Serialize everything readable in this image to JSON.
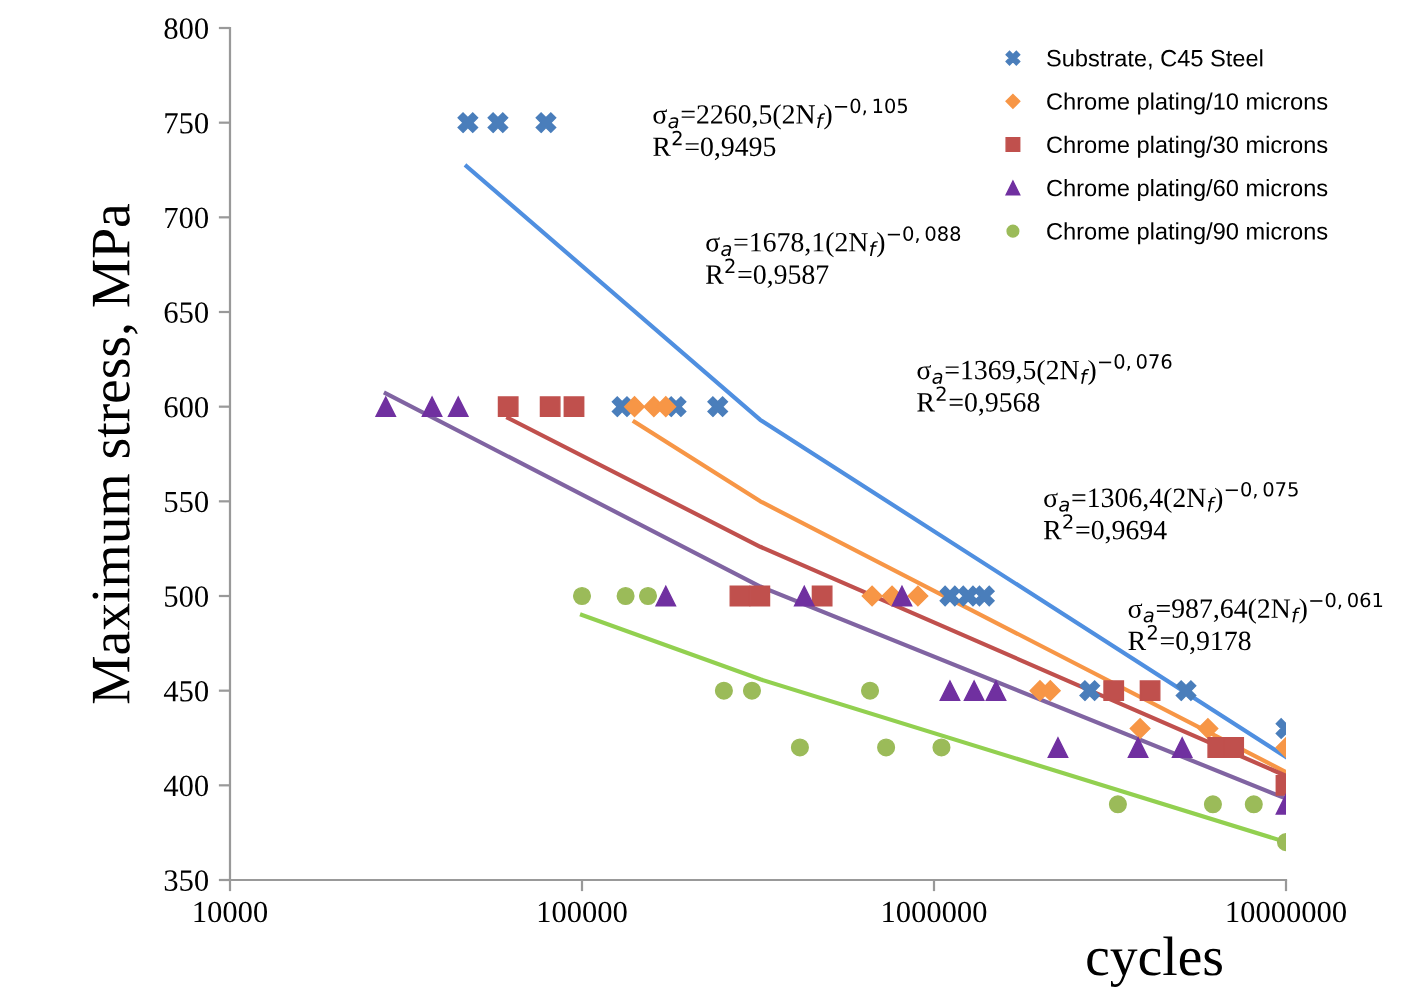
{
  "chart_data": {
    "type": "scatter",
    "xlabel": "cycles",
    "ylabel": "Maximum stress, MPa",
    "log": "x",
    "xlim": [
      10000,
      10000000
    ],
    "xticks": [
      10000,
      100000,
      1000000,
      10000000
    ],
    "ylim": [
      350,
      800
    ],
    "yticks": [
      350,
      400,
      450,
      500,
      550,
      600,
      650,
      700,
      750,
      800
    ],
    "grid": false,
    "legend": "top right",
    "series": [
      {
        "name": "Substrate, C45 Steel",
        "marker": "cross",
        "color": "#4a7ebb",
        "x": [
          47400,
          57700,
          79000,
          130000,
          185000,
          243000,
          1110000,
          1250000,
          1390000,
          2770000,
          5200000,
          10000000
        ],
        "values": [
          750,
          750,
          750,
          600,
          600,
          600,
          500,
          500,
          500,
          450,
          450,
          430
        ]
      },
      {
        "name": "Chrome plating/10 microns",
        "marker": "diamond",
        "color": "#f79646",
        "x": [
          141000,
          160000,
          173000,
          667000,
          760000,
          900000,
          2000000,
          2140000,
          3850000,
          6000000,
          10000000
        ],
        "values": [
          600,
          600,
          600,
          500,
          500,
          500,
          450,
          450,
          430,
          430,
          420
        ]
      },
      {
        "name": "Chrome plating/30 microns",
        "marker": "square",
        "color": "#c0504d",
        "x": [
          61700,
          81200,
          94900,
          281000,
          320000,
          481000,
          3240000,
          4110000,
          6400000,
          7100000,
          10000000
        ],
        "values": [
          600,
          600,
          600,
          500,
          500,
          500,
          450,
          450,
          420,
          420,
          400
        ]
      },
      {
        "name": "Chrome plating/60 microns",
        "marker": "triangle",
        "color": "#7030a0",
        "x": [
          27700,
          37500,
          44500,
          173000,
          428000,
          811000,
          1110000,
          1300000,
          1500000,
          2250000,
          3800000,
          5070000,
          10000000
        ],
        "values": [
          600,
          600,
          600,
          500,
          500,
          500,
          450,
          450,
          450,
          420,
          420,
          420,
          390
        ]
      },
      {
        "name": "Chrome plating/90 microns",
        "marker": "circle",
        "color": "#9bbb59",
        "x": [
          100000,
          133000,
          154000,
          253000,
          304000,
          658000,
          416000,
          731000,
          1050000,
          3330000,
          6200000,
          8100000,
          10000000
        ],
        "values": [
          500,
          500,
          500,
          450,
          450,
          450,
          420,
          420,
          420,
          390,
          390,
          390,
          370
        ]
      },
      {
        "type": "line",
        "marker": "none",
        "color": "#4f8fe0",
        "x": [
          47000,
          321000,
          10000000
        ],
        "values": [
          727,
          593,
          415
        ]
      },
      {
        "type": "line",
        "marker": "none",
        "color": "#f79646",
        "x": [
          141000,
          321000,
          10000000
        ],
        "values": [
          592,
          550,
          407
        ]
      },
      {
        "type": "line",
        "marker": "none",
        "color": "#c0504d",
        "x": [
          61700,
          321000,
          10000000
        ],
        "values": [
          594,
          526,
          405
        ]
      },
      {
        "type": "line",
        "marker": "none",
        "color": "#8064a2",
        "x": [
          27700,
          321000,
          10000000
        ],
        "values": [
          607,
          505,
          393
        ]
      },
      {
        "type": "line",
        "marker": "none",
        "color": "#92d050",
        "x": [
          100000,
          321000,
          10000000
        ],
        "values": [
          490,
          456,
          370
        ]
      }
    ],
    "annotations": [
      "σ$_{a}$=2260,5(2N$_{f}$)$^{−0,105}$\nR$^{2}$=0,9495",
      "σ$_{a}$=1678,1(2N$_{f}$)$^{−0,088}$\nR$^{2}$=0,9587",
      "σ$_{a}$=1369,5(2N$_{f}$)$^{−0,076}$\nR$^{2}$=0,9568",
      "σ$_{a}$=1306,4(2N$_{f}$)$^{−0,075}$\nR$^{2}$=0,9694",
      "σ$_{a}$=987,64(2N$_{f}$)$^{−0,061}$\nR$^{2}$=0,9178"
    ]
  }
}
